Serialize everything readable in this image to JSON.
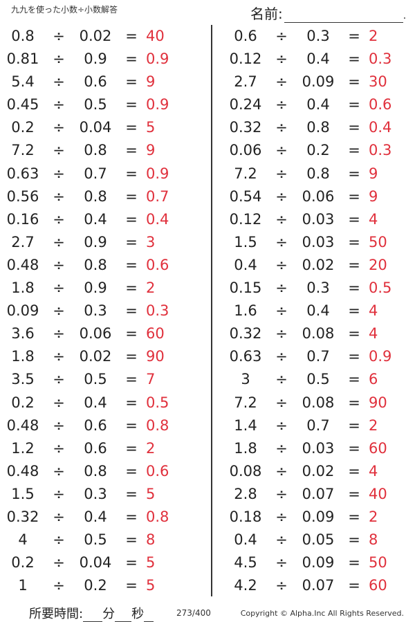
{
  "title": "九九を使った小数÷小数解答",
  "name_label": "名前:",
  "name_dot": ".",
  "operator": "÷",
  "equals": "=",
  "left_problems": [
    {
      "a": "0.8",
      "b": "0.02",
      "answer": "40"
    },
    {
      "a": "0.81",
      "b": "0.9",
      "answer": "0.9"
    },
    {
      "a": "5.4",
      "b": "0.6",
      "answer": "9"
    },
    {
      "a": "0.45",
      "b": "0.5",
      "answer": "0.9"
    },
    {
      "a": "0.2",
      "b": "0.04",
      "answer": "5"
    },
    {
      "a": "7.2",
      "b": "0.8",
      "answer": "9"
    },
    {
      "a": "0.63",
      "b": "0.7",
      "answer": "0.9"
    },
    {
      "a": "0.56",
      "b": "0.8",
      "answer": "0.7"
    },
    {
      "a": "0.16",
      "b": "0.4",
      "answer": "0.4"
    },
    {
      "a": "2.7",
      "b": "0.9",
      "answer": "3"
    },
    {
      "a": "0.48",
      "b": "0.8",
      "answer": "0.6"
    },
    {
      "a": "1.8",
      "b": "0.9",
      "answer": "2"
    },
    {
      "a": "0.09",
      "b": "0.3",
      "answer": "0.3"
    },
    {
      "a": "3.6",
      "b": "0.06",
      "answer": "60"
    },
    {
      "a": "1.8",
      "b": "0.02",
      "answer": "90"
    },
    {
      "a": "3.5",
      "b": "0.5",
      "answer": "7"
    },
    {
      "a": "0.2",
      "b": "0.4",
      "answer": "0.5"
    },
    {
      "a": "0.48",
      "b": "0.6",
      "answer": "0.8"
    },
    {
      "a": "1.2",
      "b": "0.6",
      "answer": "2"
    },
    {
      "a": "0.48",
      "b": "0.8",
      "answer": "0.6"
    },
    {
      "a": "1.5",
      "b": "0.3",
      "answer": "5"
    },
    {
      "a": "0.32",
      "b": "0.4",
      "answer": "0.8"
    },
    {
      "a": "4",
      "b": "0.5",
      "answer": "8"
    },
    {
      "a": "0.2",
      "b": "0.04",
      "answer": "5"
    },
    {
      "a": "1",
      "b": "0.2",
      "answer": "5"
    }
  ],
  "right_problems": [
    {
      "a": "0.6",
      "b": "0.3",
      "answer": "2"
    },
    {
      "a": "0.12",
      "b": "0.4",
      "answer": "0.3"
    },
    {
      "a": "2.7",
      "b": "0.09",
      "answer": "30"
    },
    {
      "a": "0.24",
      "b": "0.4",
      "answer": "0.6"
    },
    {
      "a": "0.32",
      "b": "0.8",
      "answer": "0.4"
    },
    {
      "a": "0.06",
      "b": "0.2",
      "answer": "0.3"
    },
    {
      "a": "7.2",
      "b": "0.8",
      "answer": "9"
    },
    {
      "a": "0.54",
      "b": "0.06",
      "answer": "9"
    },
    {
      "a": "0.12",
      "b": "0.03",
      "answer": "4"
    },
    {
      "a": "1.5",
      "b": "0.03",
      "answer": "50"
    },
    {
      "a": "0.4",
      "b": "0.02",
      "answer": "20"
    },
    {
      "a": "0.15",
      "b": "0.3",
      "answer": "0.5"
    },
    {
      "a": "1.6",
      "b": "0.4",
      "answer": "4"
    },
    {
      "a": "0.32",
      "b": "0.08",
      "answer": "4"
    },
    {
      "a": "0.63",
      "b": "0.7",
      "answer": "0.9"
    },
    {
      "a": "3",
      "b": "0.5",
      "answer": "6"
    },
    {
      "a": "7.2",
      "b": "0.08",
      "answer": "90"
    },
    {
      "a": "1.4",
      "b": "0.7",
      "answer": "2"
    },
    {
      "a": "1.8",
      "b": "0.03",
      "answer": "60"
    },
    {
      "a": "0.08",
      "b": "0.02",
      "answer": "4"
    },
    {
      "a": "2.8",
      "b": "0.07",
      "answer": "40"
    },
    {
      "a": "0.18",
      "b": "0.09",
      "answer": "2"
    },
    {
      "a": "0.4",
      "b": "0.05",
      "answer": "8"
    },
    {
      "a": "4.5",
      "b": "0.09",
      "answer": "50"
    },
    {
      "a": "4.2",
      "b": "0.07",
      "answer": "60"
    }
  ],
  "footer": {
    "time_label": "所要時間:",
    "minutes_label": "分",
    "seconds_label": "秒",
    "page": "273/400",
    "copyright": "Copyright © Alpha.Inc All Rights Reserved."
  },
  "colors": {
    "answer": "#e0303c",
    "text": "#222222"
  }
}
